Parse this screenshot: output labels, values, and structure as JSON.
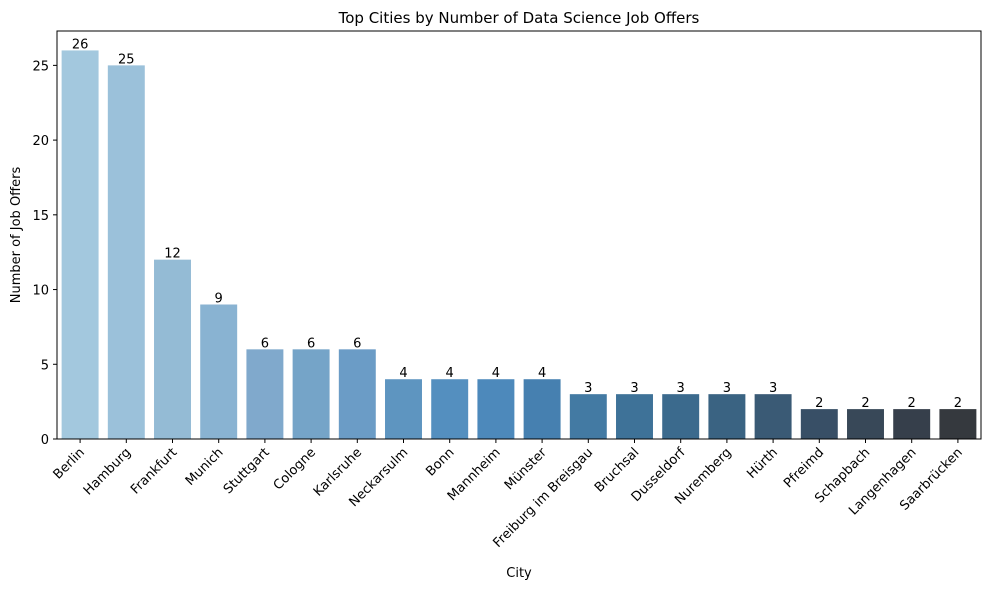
{
  "chart_data": {
    "type": "bar",
    "title": "Top Cities by Number of Data Science Job Offers",
    "xlabel": "City",
    "ylabel": "Number of Job Offers",
    "categories": [
      "Berlin",
      "Hamburg",
      "Frankfurt",
      "Munich",
      "Stuttgart",
      "Cologne",
      "Karlsruhe",
      "Neckarsulm",
      "Bonn",
      "Mannheim",
      "Münster",
      "Freiburg im Breisgau",
      "Bruchsal",
      "Dusseldorf",
      "Nuremberg",
      "Hürth",
      "Pfreimd",
      "Schapbach",
      "Langenhagen",
      "Saarbrücken"
    ],
    "values": [
      26,
      25,
      12,
      9,
      6,
      6,
      6,
      4,
      4,
      4,
      4,
      3,
      3,
      3,
      3,
      3,
      2,
      2,
      2,
      2
    ],
    "colors": [
      "#a3c8de",
      "#9bc1da",
      "#94bbd5",
      "#89b3d2",
      "#80a9cc",
      "#75a4c8",
      "#6b9cc6",
      "#5e95c0",
      "#548fbf",
      "#4d89bb",
      "#4680b0",
      "#437aa3",
      "#3e7298",
      "#3b6a8d",
      "#3a6382",
      "#3a5a75",
      "#384f66",
      "#384858",
      "#363f4b",
      "#35393e"
    ],
    "ylim": [
      0,
      27.3
    ],
    "yticks": [
      0,
      5,
      10,
      15,
      20,
      25
    ],
    "grid": false
  }
}
